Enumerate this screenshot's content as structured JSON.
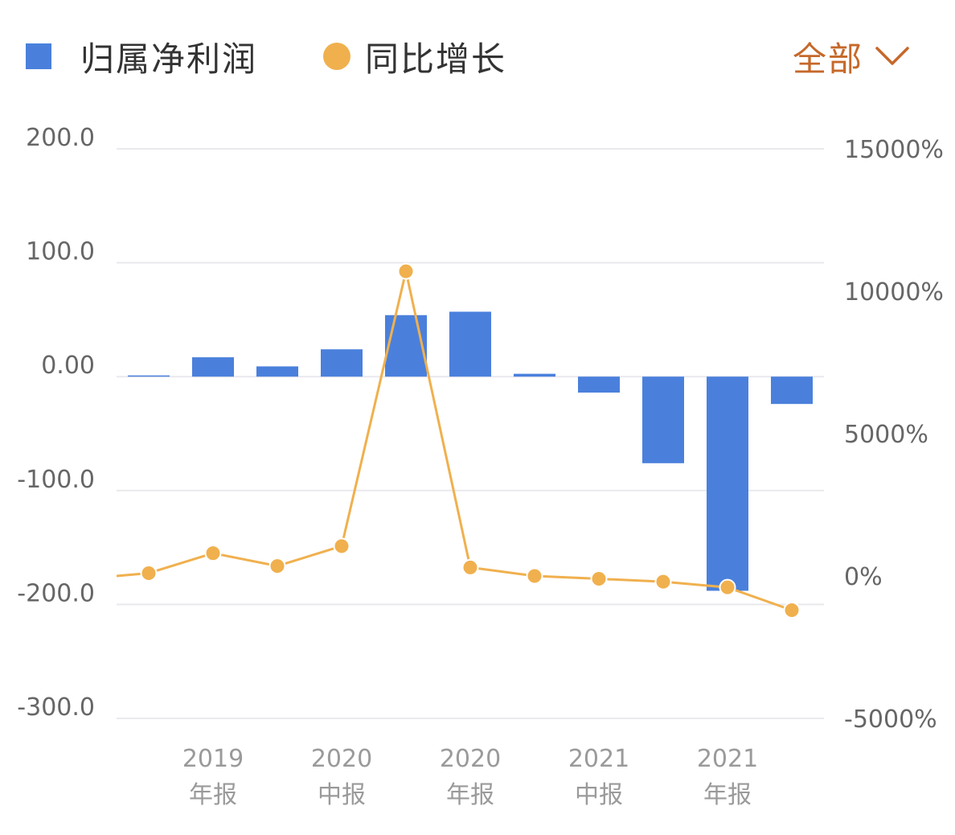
{
  "legend": {
    "bar_label": "归属净利润",
    "line_label": "同比增长"
  },
  "filter": {
    "label": "全部"
  },
  "colors": {
    "bar": "#4a80dc",
    "line": "#f0b04e",
    "accent": "#c6682a",
    "grid": "#e9e9ee",
    "tick_text": "#666666",
    "xtick_text": "#9a9a9a"
  },
  "icons": {
    "filter": "chevron-down-icon"
  },
  "chart_data": {
    "type": "bar+line",
    "categories": [
      "",
      "2019\n年报",
      "",
      "2020\n中报",
      "",
      "2020\n年报",
      "",
      "2021\n中报",
      "",
      "2021\n年报",
      ""
    ],
    "series": [
      {
        "name": "归属净利润",
        "type": "bar",
        "axis": "left",
        "values": [
          1.0,
          17.0,
          9.0,
          24.0,
          54.0,
          57.0,
          2.5,
          -14.0,
          -76.0,
          -188.0,
          -24.0
        ]
      },
      {
        "name": "同比增长",
        "type": "line",
        "axis": "right",
        "values": [
          100,
          800,
          350,
          1050,
          10700,
          300,
          0,
          -100,
          -200,
          -400,
          -1200
        ]
      }
    ],
    "left_axis": {
      "ylim": [
        -300,
        200
      ],
      "ticks": [
        200,
        100,
        0,
        -100,
        -200,
        -300
      ],
      "tick_labels": [
        "200.0",
        "100.0",
        "0.00",
        "-100.0",
        "-200.0",
        "-300.0"
      ]
    },
    "right_axis": {
      "ylim": [
        -5000,
        15000
      ],
      "ticks": [
        15000,
        10000,
        5000,
        0,
        -5000
      ],
      "tick_labels": [
        "15000%",
        "10000%",
        "5000%",
        "0%",
        "-5000%"
      ]
    },
    "line_start_value": 0,
    "grid": true,
    "legend_position": "top-left"
  }
}
